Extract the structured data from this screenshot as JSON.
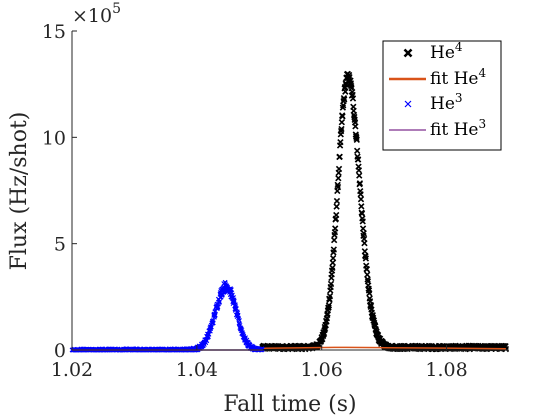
{
  "chart_data": {
    "type": "scatter",
    "xlabel": "Fall time (s)",
    "ylabel": "Flux (Hz/shot)",
    "y_multiplier": "×10",
    "y_multiplier_exp": "5",
    "xlim": [
      1.02,
      1.09
    ],
    "ylim": [
      0,
      15
    ],
    "xticks": [
      1.02,
      1.04,
      1.06,
      1.08
    ],
    "xtick_labels": [
      "1.02",
      "1.04",
      "1.06",
      "1.08"
    ],
    "yticks": [
      0,
      5,
      10,
      15
    ],
    "ytick_labels": [
      "0",
      "5",
      "10",
      "15"
    ],
    "grid": false,
    "legend_position": "top-right",
    "series": [
      {
        "name": "He",
        "name_sup": "4",
        "marker": "x",
        "color": "#000000",
        "kind": "peak",
        "x_range": [
          1.0505,
          1.0895
        ],
        "peak_x": 1.0642,
        "peak_y": 12.8,
        "width_left": 0.0016,
        "width_right": 0.0019,
        "baseline": 0.12
      },
      {
        "name": "fit He",
        "name_sup": "4",
        "marker": "line",
        "color": "#d95319",
        "kind": "line",
        "x": [
          1.0505,
          1.056,
          1.062,
          1.064,
          1.07,
          1.08,
          1.0895
        ],
        "y": [
          0.08,
          0.1,
          0.12,
          0.12,
          0.11,
          0.09,
          0.06
        ]
      },
      {
        "name": "He",
        "name_sup": "3",
        "marker": "x",
        "color": "#0000ff",
        "kind": "peak",
        "x_range": [
          1.02,
          1.0505
        ],
        "peak_x": 1.0447,
        "peak_y": 3.0,
        "width_left": 0.0017,
        "width_right": 0.0016,
        "baseline": 0.0
      },
      {
        "name": "fit He",
        "name_sup": "3",
        "marker": "line",
        "color": "#7e2f8e",
        "kind": "line",
        "x": [
          1.02,
          1.0505
        ],
        "y": [
          0.0,
          0.0
        ]
      }
    ]
  }
}
